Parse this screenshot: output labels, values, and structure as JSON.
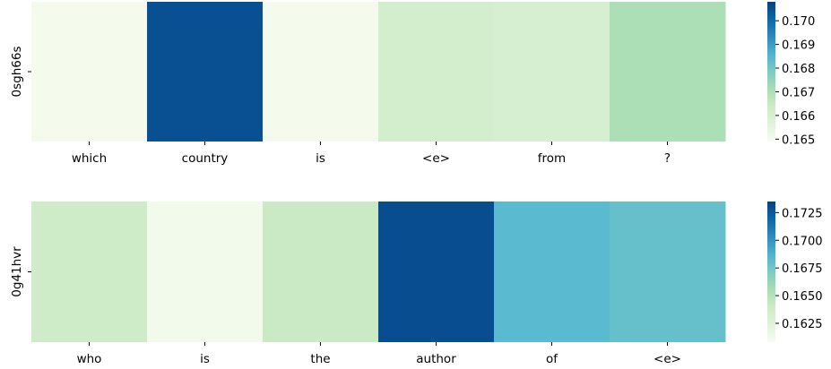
{
  "chart_data": [
    {
      "type": "heatmap",
      "title": "",
      "xlabel": "",
      "ylabel": "",
      "categories": [
        "which",
        "country",
        "is",
        "<e>",
        "from",
        "?"
      ],
      "rows": [
        "0sgh66s"
      ],
      "values": [
        [
          0.165,
          0.1705,
          0.165,
          0.1661,
          0.166,
          0.167
        ]
      ],
      "colorbar": {
        "min": 0.1649,
        "max": 0.1708,
        "ticks": [
          0.165,
          0.166,
          0.167,
          0.168,
          0.169,
          0.17
        ],
        "tick_labels": [
          "0.165",
          "0.166",
          "0.167",
          "0.168",
          "0.169",
          "0.170"
        ]
      },
      "colormap": "GnBu"
    },
    {
      "type": "heatmap",
      "title": "",
      "xlabel": "",
      "ylabel": "",
      "categories": [
        "who",
        "is",
        "the",
        "author",
        "of",
        "<e>"
      ],
      "rows": [
        "0g41hvr"
      ],
      "values": [
        [
          0.1637,
          0.1612,
          0.1641,
          0.173,
          0.1683,
          0.1679
        ]
      ],
      "colorbar": {
        "min": 0.1608,
        "max": 0.1735,
        "ticks": [
          0.1625,
          0.165,
          0.1675,
          0.17,
          0.1725
        ],
        "tick_labels": [
          "0.1625",
          "0.1650",
          "0.1675",
          "0.1700",
          "0.1725"
        ]
      },
      "colormap": "GnBu"
    }
  ]
}
